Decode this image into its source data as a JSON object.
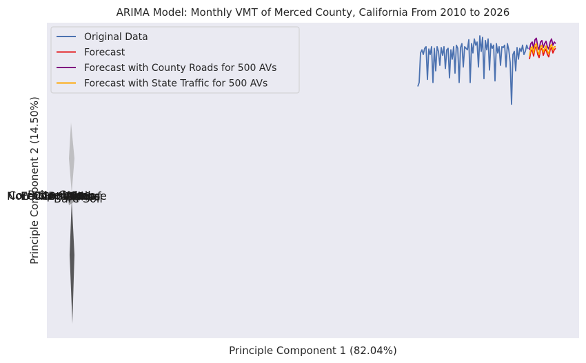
{
  "chart_data": {
    "type": "line",
    "title": "ARIMA Model: Monthly VMT of Merced County, California From 2010 to 2026",
    "xlabel": "Principle Component 1 (82.04%)",
    "ylabel": "Principle Component 2 (14.50%)",
    "grid": false,
    "legend_position": "top-left",
    "background_color": "#eaeaf2",
    "series": [
      {
        "name": "Original Data",
        "color": "#4c72b0",
        "values": [
          0.35,
          0.4,
          0.78,
          0.82,
          0.76,
          0.84,
          0.86,
          0.44,
          0.83,
          0.76,
          0.86,
          0.4,
          0.84,
          0.55,
          0.86,
          0.8,
          0.62,
          0.85,
          0.75,
          0.86,
          0.58,
          0.82,
          0.84,
          0.46,
          0.82,
          0.7,
          0.86,
          0.52,
          0.88,
          0.84,
          0.4,
          0.85,
          0.9,
          0.6,
          0.86,
          0.84,
          0.82,
          0.95,
          0.4,
          0.9,
          0.78,
          0.96,
          0.88,
          0.92,
          0.6,
          1.0,
          0.8,
          0.98,
          0.45,
          0.94,
          0.82,
          0.96,
          0.56,
          0.9,
          0.84,
          0.88,
          0.42,
          0.9,
          0.78,
          0.86,
          0.62,
          0.86,
          0.85,
          0.88,
          0.6,
          0.9,
          0.82,
          0.66,
          0.12,
          0.76,
          0.8,
          0.55,
          0.85,
          0.7,
          0.84,
          0.8,
          0.88,
          0.76,
          0.8,
          0.88,
          0.83
        ]
      },
      {
        "name": "Forecast",
        "color": "#e41a1c",
        "values": [
          0.7,
          0.8,
          0.82,
          0.74,
          0.84,
          0.86,
          0.76,
          0.72,
          0.82,
          0.84,
          0.75,
          0.8,
          0.83,
          0.76,
          0.73,
          0.82,
          0.85,
          0.78,
          0.82,
          0.84
        ]
      },
      {
        "name": "Forecast with County Roads for 500 AVs",
        "color": "#800080",
        "values": [
          0.82,
          0.9,
          0.92,
          0.84,
          0.95,
          0.97,
          0.86,
          0.82,
          0.92,
          0.94,
          0.85,
          0.9,
          0.93,
          0.86,
          0.83,
          0.92,
          0.96,
          0.88,
          0.92,
          0.9
        ]
      },
      {
        "name": "Forecast with State Traffic for 500 AVs",
        "color": "#ffa500",
        "values": [
          0.74,
          0.84,
          0.86,
          0.78,
          0.88,
          0.9,
          0.8,
          0.76,
          0.86,
          0.88,
          0.79,
          0.84,
          0.87,
          0.8,
          0.77,
          0.86,
          0.89,
          0.82,
          0.86,
          0.86
        ]
      }
    ],
    "overlay_labels": [
      "Non-Corrosive",
      "Corrosive",
      "Edible",
      "Poisonous",
      "Open Soil",
      "Coniferous",
      "Broadleaf",
      "Bare Soil",
      "Grass",
      "Urban",
      "Dense",
      "Sparse"
    ]
  }
}
